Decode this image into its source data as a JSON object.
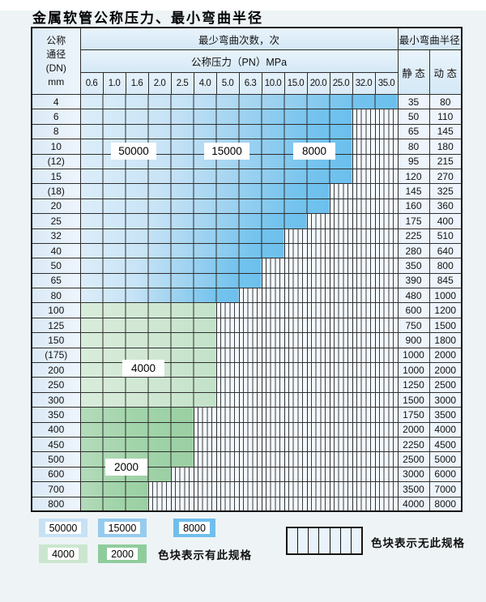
{
  "title": "金属软管公称压力、最小弯曲半径",
  "table": {
    "corner_lines": [
      "公称",
      "通径",
      "(DN)",
      "mm"
    ],
    "cycles_header": "最少弯曲次数，次",
    "pressure_header": "公称压力（PN）MPa",
    "radius_header": "最小弯曲半径",
    "static_label": "静 态",
    "dynamic_label": "动 态",
    "pressures": [
      "0.6",
      "1.0",
      "1.6",
      "2.0",
      "2.5",
      "4.0",
      "5.0",
      "6.3",
      "10.0",
      "15.0",
      "20.0",
      "25.0",
      "32.0",
      "35.0"
    ],
    "rows": [
      {
        "dn": "4",
        "colored": 14,
        "zone": "blue",
        "static": "35",
        "dynamic": "80"
      },
      {
        "dn": "6",
        "colored": 12,
        "zone": "blue",
        "static": "50",
        "dynamic": "110"
      },
      {
        "dn": "8",
        "colored": 12,
        "zone": "blue",
        "static": "65",
        "dynamic": "145"
      },
      {
        "dn": "10",
        "colored": 12,
        "zone": "blue",
        "static": "80",
        "dynamic": "180"
      },
      {
        "dn": "(12)",
        "colored": 12,
        "zone": "blue",
        "static": "95",
        "dynamic": "215"
      },
      {
        "dn": "15",
        "colored": 12,
        "zone": "blue",
        "static": "120",
        "dynamic": "270"
      },
      {
        "dn": "(18)",
        "colored": 11,
        "zone": "blue",
        "static": "145",
        "dynamic": "325"
      },
      {
        "dn": "20",
        "colored": 11,
        "zone": "blue",
        "static": "160",
        "dynamic": "360"
      },
      {
        "dn": "25",
        "colored": 10,
        "zone": "blue",
        "static": "175",
        "dynamic": "400"
      },
      {
        "dn": "32",
        "colored": 9,
        "zone": "blue",
        "static": "225",
        "dynamic": "510"
      },
      {
        "dn": "40",
        "colored": 9,
        "zone": "blue",
        "static": "280",
        "dynamic": "640"
      },
      {
        "dn": "50",
        "colored": 8,
        "zone": "blue",
        "static": "350",
        "dynamic": "800"
      },
      {
        "dn": "65",
        "colored": 8,
        "zone": "blue",
        "static": "390",
        "dynamic": "845"
      },
      {
        "dn": "80",
        "colored": 7,
        "zone": "blue",
        "static": "480",
        "dynamic": "1000"
      },
      {
        "dn": "100",
        "colored": 6,
        "zone": "green-light",
        "static": "600",
        "dynamic": "1200"
      },
      {
        "dn": "125",
        "colored": 6,
        "zone": "green-light",
        "static": "750",
        "dynamic": "1500"
      },
      {
        "dn": "150",
        "colored": 6,
        "zone": "green-light",
        "static": "900",
        "dynamic": "1800"
      },
      {
        "dn": "(175)",
        "colored": 6,
        "zone": "green-light",
        "static": "1000",
        "dynamic": "2000"
      },
      {
        "dn": "200",
        "colored": 6,
        "zone": "green-light",
        "static": "1000",
        "dynamic": "2000"
      },
      {
        "dn": "250",
        "colored": 6,
        "zone": "green-light",
        "static": "1250",
        "dynamic": "2500"
      },
      {
        "dn": "300",
        "colored": 6,
        "zone": "green-light",
        "static": "1500",
        "dynamic": "3000"
      },
      {
        "dn": "350",
        "colored": 5,
        "zone": "green-dark",
        "static": "1750",
        "dynamic": "3500"
      },
      {
        "dn": "400",
        "colored": 5,
        "zone": "green-dark",
        "static": "2000",
        "dynamic": "4000"
      },
      {
        "dn": "450",
        "colored": 5,
        "zone": "green-dark",
        "static": "2250",
        "dynamic": "4500"
      },
      {
        "dn": "500",
        "colored": 5,
        "zone": "green-dark",
        "static": "2500",
        "dynamic": "5000"
      },
      {
        "dn": "600",
        "colored": 4,
        "zone": "green-dark",
        "static": "3000",
        "dynamic": "6000"
      },
      {
        "dn": "700",
        "colored": 3,
        "zone": "green-dark",
        "static": "3500",
        "dynamic": "7000"
      },
      {
        "dn": "800",
        "colored": 3,
        "zone": "green-dark",
        "static": "4000",
        "dynamic": "8000"
      }
    ]
  },
  "cycle_flags": [
    {
      "label": "50000"
    },
    {
      "label": "15000"
    },
    {
      "label": "8000"
    },
    {
      "label": "4000"
    },
    {
      "label": "2000"
    }
  ],
  "legend": {
    "swatches": [
      {
        "label": "50000",
        "color": "#c7e1f5"
      },
      {
        "label": "15000",
        "color": "#95cbee"
      },
      {
        "label": "8000",
        "color": "#6fbfec"
      },
      {
        "label": "4000",
        "color": "#cbe6cf"
      },
      {
        "label": "2000",
        "color": "#8fcc9c"
      }
    ],
    "has_spec_text": "色块表示有此规格",
    "no_spec_text": "色块表示无此规格",
    "no_spec_cells": 7
  },
  "colors": {
    "blue_light": "#dcedf9",
    "blue_mid": "#9ed2f0",
    "blue_dark": "#6cc0ed",
    "green_light": "#cfe7d2",
    "green_dark": "#9cd1a5",
    "no_spec_bg": "#f3f9fe",
    "grid_line": "#2e2e2e"
  }
}
